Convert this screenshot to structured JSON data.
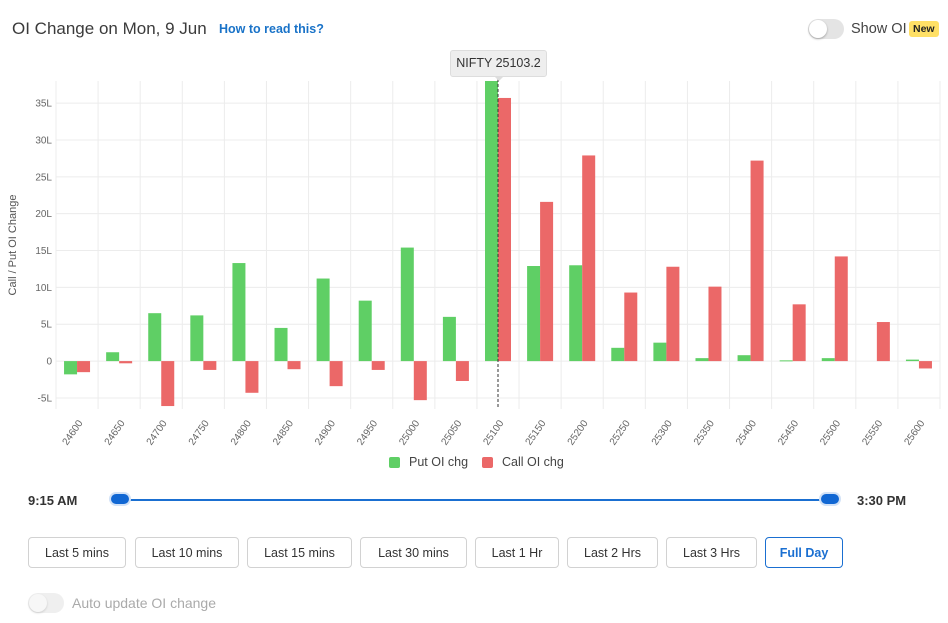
{
  "header": {
    "title": "OI Change on Mon, 9 Jun",
    "help_link": "How to read this?",
    "show_oi_label": "Show OI",
    "new_badge": "New"
  },
  "tooltip": {
    "text": "NIFTY 25103.2"
  },
  "colors": {
    "put": "#5fcf65",
    "call": "#eb6868",
    "accent": "#1a6fd1",
    "grid": "#ececec"
  },
  "chart_data": {
    "type": "bar",
    "title": "OI Change on Mon, 9 Jun",
    "xlabel": "",
    "ylabel": "Call / Put OI Change",
    "ylim": [
      -6.5,
      38
    ],
    "yticks": [
      -5,
      0,
      5,
      10,
      15,
      20,
      25,
      30,
      35
    ],
    "ytick_labels": [
      "-5L",
      "0",
      "5L",
      "10L",
      "15L",
      "20L",
      "25L",
      "30L",
      "35L"
    ],
    "categories": [
      "24600",
      "24650",
      "24700",
      "24750",
      "24800",
      "24850",
      "24900",
      "24950",
      "25000",
      "25050",
      "25100",
      "25150",
      "25200",
      "25250",
      "25300",
      "25350",
      "25400",
      "25450",
      "25500",
      "25550",
      "25600"
    ],
    "series": [
      {
        "name": "Put OI chg",
        "values": [
          -1.8,
          1.2,
          6.5,
          6.2,
          13.3,
          4.5,
          11.2,
          8.2,
          15.4,
          6.0,
          38.0,
          12.9,
          13.0,
          1.8,
          2.5,
          0.4,
          0.8,
          0.1,
          0.4,
          0.0,
          0.2
        ]
      },
      {
        "name": "Call OI chg",
        "values": [
          -1.5,
          -0.3,
          -6.1,
          -1.2,
          -4.3,
          -1.1,
          -3.4,
          -1.2,
          -5.3,
          -2.7,
          35.7,
          21.6,
          27.9,
          9.3,
          12.8,
          10.1,
          27.2,
          7.7,
          14.2,
          5.3,
          -1.0
        ]
      }
    ],
    "spot_marker": {
      "strike": "25100",
      "label": "NIFTY 25103.2"
    },
    "legend_position": "bottom-center"
  },
  "time_range": {
    "start": "9:15 AM",
    "end": "3:30 PM"
  },
  "range_buttons": [
    "Last 5 mins",
    "Last 10 mins",
    "Last 15 mins",
    "Last 30 mins",
    "Last 1 Hr",
    "Last 2 Hrs",
    "Last 3 Hrs",
    "Full Day"
  ],
  "active_range": "Full Day",
  "auto_update": {
    "label": "Auto update OI change"
  }
}
